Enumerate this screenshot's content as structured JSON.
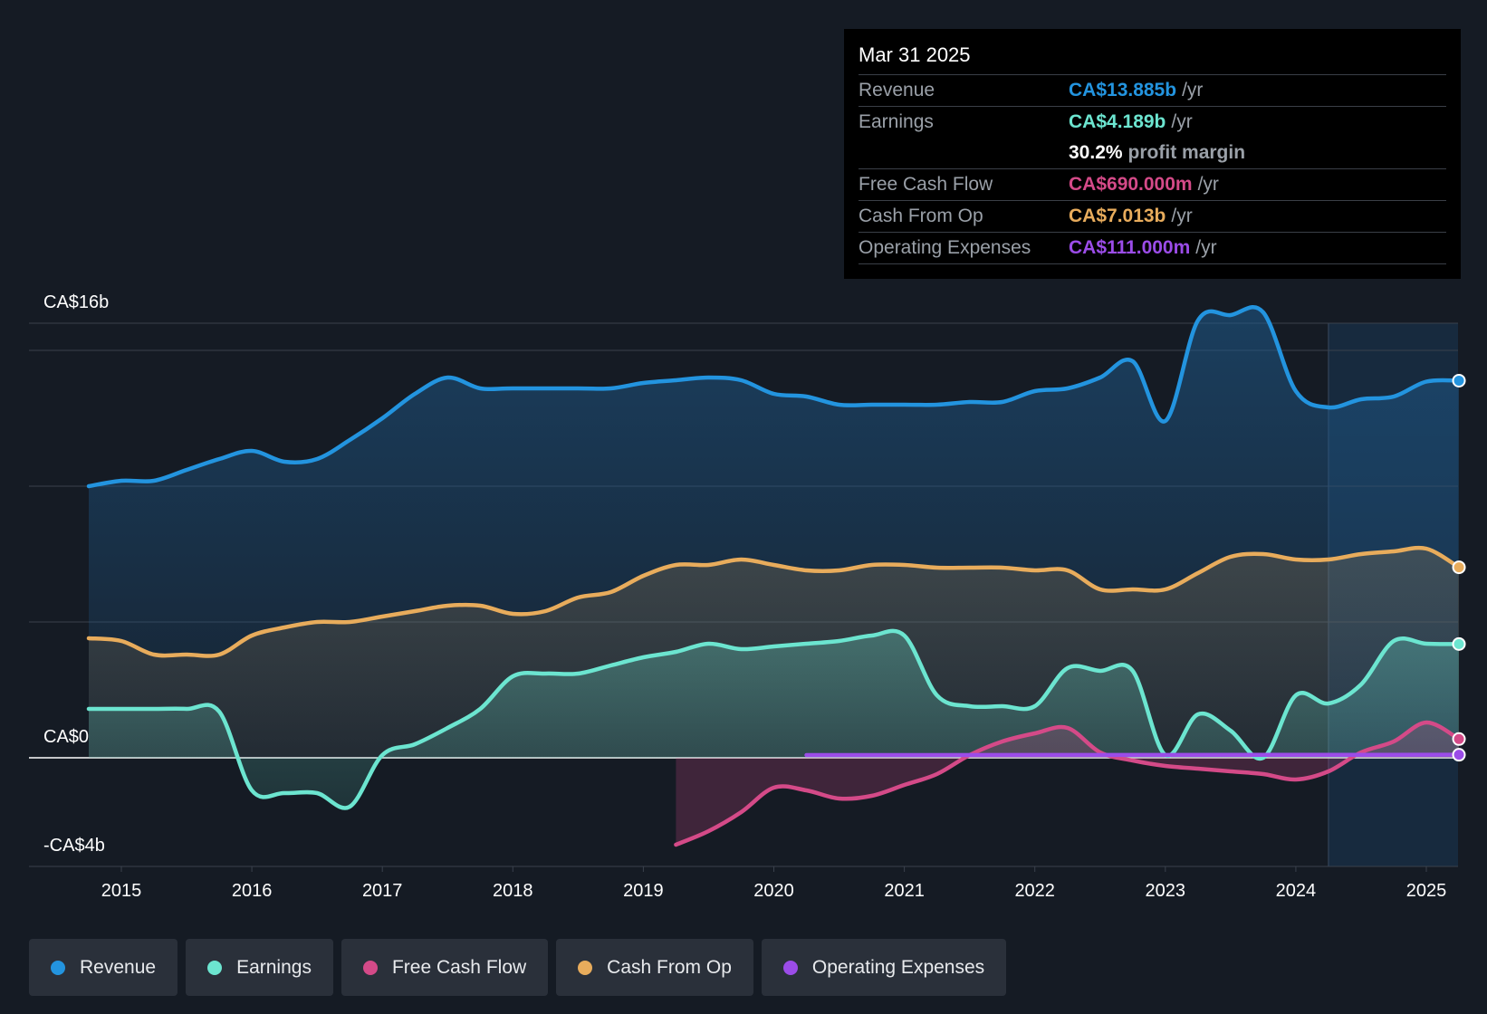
{
  "tooltip": {
    "date": "Mar 31 2025",
    "rows": [
      {
        "label": "Revenue",
        "value": "CA$13.885b",
        "unit": "/yr",
        "color": "#2394df"
      },
      {
        "label": "Earnings",
        "value": "CA$4.189b",
        "unit": "/yr",
        "color": "#6ce5d0"
      },
      {
        "label": "",
        "value": "30.2%",
        "unit": "profit margin",
        "color": "#ffffff"
      },
      {
        "label": "Free Cash Flow",
        "value": "CA$690.000m",
        "unit": "/yr",
        "color": "#d44a88"
      },
      {
        "label": "Cash From Op",
        "value": "CA$7.013b",
        "unit": "/yr",
        "color": "#e8ac5c"
      },
      {
        "label": "Operating Expenses",
        "value": "CA$111.000m",
        "unit": "/yr",
        "color": "#9b4ce8"
      }
    ]
  },
  "legend": [
    {
      "label": "Revenue",
      "color": "#2394df"
    },
    {
      "label": "Earnings",
      "color": "#6ce5d0"
    },
    {
      "label": "Free Cash Flow",
      "color": "#d44a88"
    },
    {
      "label": "Cash From Op",
      "color": "#e8ac5c"
    },
    {
      "label": "Operating Expenses",
      "color": "#9b4ce8"
    }
  ],
  "chart_data": {
    "type": "line",
    "title": "",
    "xlabel": "",
    "ylabel": "",
    "ylim": [
      -4,
      16
    ],
    "xlim": [
      2014.3,
      2025.25
    ],
    "y_tick_labels": [
      {
        "value": 16,
        "label": "CA$16b"
      },
      {
        "value": 0,
        "label": "CA$0"
      },
      {
        "value": -4,
        "label": "-CA$4b"
      }
    ],
    "x_ticks": [
      2015,
      2016,
      2017,
      2018,
      2019,
      2020,
      2021,
      2022,
      2023,
      2024,
      2025
    ],
    "x_tick_labels": [
      "2015",
      "2016",
      "2017",
      "2018",
      "2019",
      "2020",
      "2021",
      "2022",
      "2023",
      "2024",
      "2025"
    ],
    "forecast_start": 2024.25,
    "series": [
      {
        "name": "Revenue",
        "color": "#2394df",
        "points": [
          [
            2014.75,
            10.0
          ],
          [
            2015.0,
            10.2
          ],
          [
            2015.25,
            10.2
          ],
          [
            2015.5,
            10.6
          ],
          [
            2015.75,
            11.0
          ],
          [
            2016.0,
            11.3
          ],
          [
            2016.25,
            10.9
          ],
          [
            2016.5,
            11.0
          ],
          [
            2016.75,
            11.7
          ],
          [
            2017.0,
            12.5
          ],
          [
            2017.25,
            13.4
          ],
          [
            2017.5,
            14.0
          ],
          [
            2017.75,
            13.6
          ],
          [
            2018.0,
            13.6
          ],
          [
            2018.5,
            13.6
          ],
          [
            2018.75,
            13.6
          ],
          [
            2019.0,
            13.8
          ],
          [
            2019.25,
            13.9
          ],
          [
            2019.5,
            14.0
          ],
          [
            2019.75,
            13.9
          ],
          [
            2020.0,
            13.4
          ],
          [
            2020.25,
            13.3
          ],
          [
            2020.5,
            13.0
          ],
          [
            2020.75,
            13.0
          ],
          [
            2021.0,
            13.0
          ],
          [
            2021.25,
            13.0
          ],
          [
            2021.5,
            13.1
          ],
          [
            2021.75,
            13.1
          ],
          [
            2022.0,
            13.5
          ],
          [
            2022.25,
            13.6
          ],
          [
            2022.5,
            14.0
          ],
          [
            2022.75,
            14.6
          ],
          [
            2023.0,
            12.4
          ],
          [
            2023.25,
            16.1
          ],
          [
            2023.5,
            16.3
          ],
          [
            2023.75,
            16.4
          ],
          [
            2024.0,
            13.5
          ],
          [
            2024.25,
            12.9
          ],
          [
            2024.5,
            13.2
          ],
          [
            2024.75,
            13.3
          ],
          [
            2025.0,
            13.85
          ],
          [
            2025.25,
            13.885
          ]
        ]
      },
      {
        "name": "Cash From Op",
        "color": "#e8ac5c",
        "points": [
          [
            2014.75,
            4.4
          ],
          [
            2015.0,
            4.3
          ],
          [
            2015.25,
            3.8
          ],
          [
            2015.5,
            3.8
          ],
          [
            2015.75,
            3.8
          ],
          [
            2016.0,
            4.5
          ],
          [
            2016.25,
            4.8
          ],
          [
            2016.5,
            5.0
          ],
          [
            2016.75,
            5.0
          ],
          [
            2017.0,
            5.2
          ],
          [
            2017.25,
            5.4
          ],
          [
            2017.5,
            5.6
          ],
          [
            2017.75,
            5.6
          ],
          [
            2018.0,
            5.3
          ],
          [
            2018.25,
            5.4
          ],
          [
            2018.5,
            5.9
          ],
          [
            2018.75,
            6.1
          ],
          [
            2019.0,
            6.7
          ],
          [
            2019.25,
            7.1
          ],
          [
            2019.5,
            7.1
          ],
          [
            2019.75,
            7.3
          ],
          [
            2020.0,
            7.1
          ],
          [
            2020.25,
            6.9
          ],
          [
            2020.5,
            6.9
          ],
          [
            2020.75,
            7.1
          ],
          [
            2021.0,
            7.1
          ],
          [
            2021.25,
            7.0
          ],
          [
            2021.5,
            7.0
          ],
          [
            2021.75,
            7.0
          ],
          [
            2022.0,
            6.9
          ],
          [
            2022.25,
            6.9
          ],
          [
            2022.5,
            6.2
          ],
          [
            2022.75,
            6.2
          ],
          [
            2023.0,
            6.2
          ],
          [
            2023.25,
            6.8
          ],
          [
            2023.5,
            7.4
          ],
          [
            2023.75,
            7.5
          ],
          [
            2024.0,
            7.3
          ],
          [
            2024.25,
            7.3
          ],
          [
            2024.5,
            7.5
          ],
          [
            2024.75,
            7.6
          ],
          [
            2025.0,
            7.7
          ],
          [
            2025.25,
            7.013
          ]
        ]
      },
      {
        "name": "Earnings",
        "color": "#6ce5d0",
        "points": [
          [
            2014.75,
            1.8
          ],
          [
            2015.0,
            1.8
          ],
          [
            2015.25,
            1.8
          ],
          [
            2015.5,
            1.8
          ],
          [
            2015.75,
            1.7
          ],
          [
            2016.0,
            -1.2
          ],
          [
            2016.25,
            -1.3
          ],
          [
            2016.5,
            -1.3
          ],
          [
            2016.75,
            -1.8
          ],
          [
            2017.0,
            0.1
          ],
          [
            2017.25,
            0.5
          ],
          [
            2017.5,
            1.1
          ],
          [
            2017.75,
            1.8
          ],
          [
            2018.0,
            3.0
          ],
          [
            2018.25,
            3.1
          ],
          [
            2018.5,
            3.1
          ],
          [
            2018.75,
            3.4
          ],
          [
            2019.0,
            3.7
          ],
          [
            2019.25,
            3.9
          ],
          [
            2019.5,
            4.2
          ],
          [
            2019.75,
            4.0
          ],
          [
            2020.0,
            4.1
          ],
          [
            2020.25,
            4.2
          ],
          [
            2020.5,
            4.3
          ],
          [
            2020.75,
            4.5
          ],
          [
            2021.0,
            4.5
          ],
          [
            2021.25,
            2.3
          ],
          [
            2021.5,
            1.9
          ],
          [
            2021.75,
            1.9
          ],
          [
            2022.0,
            1.9
          ],
          [
            2022.25,
            3.3
          ],
          [
            2022.5,
            3.2
          ],
          [
            2022.75,
            3.2
          ],
          [
            2023.0,
            0.1
          ],
          [
            2023.25,
            1.6
          ],
          [
            2023.5,
            1.0
          ],
          [
            2023.75,
            0.0
          ],
          [
            2024.0,
            2.3
          ],
          [
            2024.25,
            2.0
          ],
          [
            2024.5,
            2.7
          ],
          [
            2024.75,
            4.3
          ],
          [
            2025.0,
            4.2
          ],
          [
            2025.25,
            4.189
          ]
        ]
      },
      {
        "name": "Free Cash Flow",
        "color": "#d44a88",
        "points": [
          [
            2019.25,
            -3.2
          ],
          [
            2019.5,
            -2.7
          ],
          [
            2019.75,
            -2.0
          ],
          [
            2020.0,
            -1.1
          ],
          [
            2020.25,
            -1.2
          ],
          [
            2020.5,
            -1.5
          ],
          [
            2020.75,
            -1.4
          ],
          [
            2021.0,
            -1.0
          ],
          [
            2021.25,
            -0.6
          ],
          [
            2021.5,
            0.1
          ],
          [
            2021.75,
            0.6
          ],
          [
            2022.0,
            0.9
          ],
          [
            2022.25,
            1.1
          ],
          [
            2022.5,
            0.2
          ],
          [
            2022.75,
            -0.1
          ],
          [
            2023.0,
            -0.3
          ],
          [
            2023.25,
            -0.4
          ],
          [
            2023.5,
            -0.5
          ],
          [
            2023.75,
            -0.6
          ],
          [
            2024.0,
            -0.8
          ],
          [
            2024.25,
            -0.5
          ],
          [
            2024.5,
            0.2
          ],
          [
            2024.75,
            0.6
          ],
          [
            2025.0,
            1.3
          ],
          [
            2025.25,
            0.69
          ]
        ]
      },
      {
        "name": "Operating Expenses",
        "color": "#9b4ce8",
        "points": [
          [
            2020.25,
            0.1
          ],
          [
            2021.0,
            0.1
          ],
          [
            2022.0,
            0.1
          ],
          [
            2023.0,
            0.1
          ],
          [
            2024.0,
            0.1
          ],
          [
            2025.25,
            0.111
          ]
        ]
      }
    ]
  }
}
